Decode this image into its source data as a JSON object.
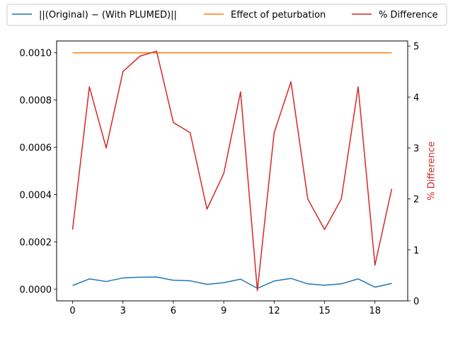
{
  "chart_data": {
    "type": "line",
    "x": [
      0,
      1,
      2,
      3,
      4,
      5,
      6,
      7,
      8,
      9,
      10,
      11,
      12,
      13,
      14,
      15,
      16,
      17,
      18,
      19
    ],
    "xlim": [
      -0.95,
      19.95
    ],
    "x_ticks": [
      0,
      3,
      6,
      9,
      12,
      15,
      18
    ],
    "x_tick_labels": [
      "0",
      "3",
      "6",
      "9",
      "12",
      "15",
      "18"
    ],
    "left_axis": {
      "ylim": [
        -5e-05,
        0.00105
      ],
      "ticks": [
        0,
        0.0002,
        0.0004,
        0.0006,
        0.0008,
        0.001
      ],
      "tick_labels": [
        "0.0000",
        "0.0002",
        "0.0004",
        "0.0006",
        "0.0008",
        "0.0010"
      ],
      "label": ""
    },
    "right_axis": {
      "ylim": [
        0,
        5.1
      ],
      "ticks": [
        0,
        1,
        2,
        3,
        4,
        5
      ],
      "tick_labels": [
        "0",
        "1",
        "2",
        "3",
        "4",
        "5"
      ],
      "label": "% Difference",
      "label_color": "#d62728"
    },
    "series": [
      {
        "name": "||(Original) − (With PLUMED)||",
        "axis": "left",
        "color": "#1f77b4",
        "values": [
          1.5e-05,
          4.3e-05,
          3.2e-05,
          4.7e-05,
          5e-05,
          5.1e-05,
          3.7e-05,
          3.5e-05,
          2e-05,
          2.7e-05,
          4.2e-05,
          3e-06,
          3.4e-05,
          4.5e-05,
          2.2e-05,
          1.6e-05,
          2.2e-05,
          4.3e-05,
          8e-06,
          2.4e-05
        ]
      },
      {
        "name": "Effect of peturbation",
        "axis": "left",
        "color": "#ff7f0e",
        "values": [
          0.001,
          0.001,
          0.001,
          0.001,
          0.001,
          0.001,
          0.001,
          0.001,
          0.001,
          0.001,
          0.001,
          0.001,
          0.001,
          0.001,
          0.001,
          0.001,
          0.001,
          0.001,
          0.001,
          0.001
        ]
      },
      {
        "name": "% Difference",
        "axis": "right",
        "color": "#d62728",
        "values": [
          1.4,
          4.2,
          3.0,
          4.5,
          4.8,
          4.9,
          3.5,
          3.3,
          1.8,
          2.5,
          4.1,
          0.2,
          3.3,
          4.3,
          2.0,
          1.4,
          2.0,
          4.2,
          0.7,
          2.2
        ]
      }
    ],
    "legend": {
      "placement": "top-center, outside, 3 columns"
    },
    "grid": false
  }
}
